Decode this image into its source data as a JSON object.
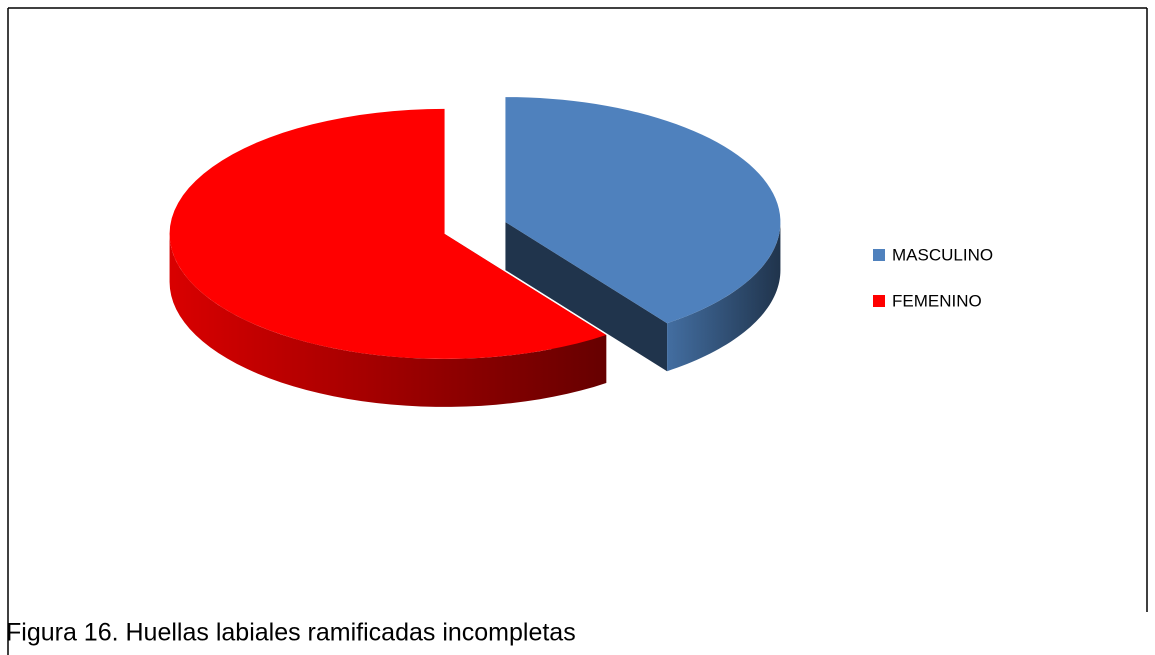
{
  "chart_data": {
    "type": "pie3d",
    "categories": [
      "MASCULINO",
      "FEMENINO"
    ],
    "values": [
      40,
      60
    ],
    "colors": [
      "#4f81bd",
      "#ff0000"
    ],
    "legend": "right",
    "caption": "Figura 16. Huellas labiales ramificadas incompletas"
  }
}
